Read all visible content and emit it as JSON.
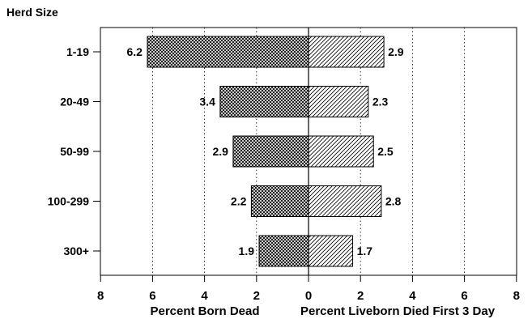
{
  "chart_data": {
    "type": "bar",
    "orientation": "horizontal",
    "layout": "back-to-back",
    "y_axis_title": "Herd Size",
    "categories": [
      "1-19",
      "20-49",
      "50-99",
      "100-299",
      "300+"
    ],
    "series": [
      {
        "name": "Percent Born Dead",
        "side": "left",
        "pattern": "crosshatch",
        "values": [
          6.2,
          3.4,
          2.9,
          2.2,
          1.9
        ]
      },
      {
        "name": "Percent Liveborn Died First 3 Day",
        "side": "right",
        "pattern": "diagonal-hatch",
        "values": [
          2.9,
          2.3,
          2.5,
          2.8,
          1.7
        ]
      }
    ],
    "left_xlabel": "Percent Born Dead",
    "right_xlabel": "Percent Liveborn Died First 3 Day",
    "left_xlim": [
      0,
      8
    ],
    "right_xlim": [
      0,
      8
    ],
    "x_ticks_left": [
      8,
      6,
      4,
      2,
      0
    ],
    "x_ticks_right": [
      2,
      4,
      6,
      8
    ],
    "grid": "vertical dotted"
  }
}
